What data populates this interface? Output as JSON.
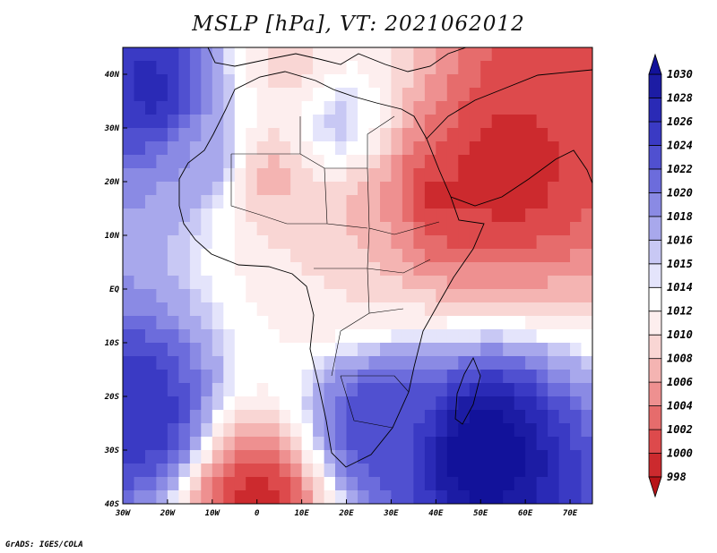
{
  "title": "MSLP [hPa], VT: 2021062012",
  "credit": "GrADS: IGES/COLA",
  "map": {
    "lon_range": [
      -30,
      75
    ],
    "lat_range": [
      -40,
      45
    ],
    "lon_ticks": [
      {
        "value": -30,
        "label": "30W"
      },
      {
        "value": -20,
        "label": "20W"
      },
      {
        "value": -10,
        "label": "10W"
      },
      {
        "value": 0,
        "label": "0"
      },
      {
        "value": 10,
        "label": "10E"
      },
      {
        "value": 20,
        "label": "20E"
      },
      {
        "value": 30,
        "label": "30E"
      },
      {
        "value": 40,
        "label": "40E"
      },
      {
        "value": 50,
        "label": "50E"
      },
      {
        "value": 60,
        "label": "60E"
      },
      {
        "value": 70,
        "label": "70E"
      }
    ],
    "lat_ticks": [
      {
        "value": 40,
        "label": "40N"
      },
      {
        "value": 30,
        "label": "30N"
      },
      {
        "value": 20,
        "label": "20N"
      },
      {
        "value": 10,
        "label": "10N"
      },
      {
        "value": 0,
        "label": "EQ"
      },
      {
        "value": -10,
        "label": "10S"
      },
      {
        "value": -20,
        "label": "20S"
      },
      {
        "value": -30,
        "label": "30S"
      },
      {
        "value": -40,
        "label": "40S"
      }
    ]
  },
  "colorbar": {
    "levels": [
      998,
      1000,
      1002,
      1004,
      1006,
      1008,
      1010,
      1012,
      1014,
      1015,
      1016,
      1018,
      1020,
      1022,
      1024,
      1026,
      1028,
      1030
    ],
    "colors": [
      "#b71418",
      "#cc2a2e",
      "#dd4a4c",
      "#e66c6c",
      "#ee9090",
      "#f4b4b2",
      "#f9d6d4",
      "#fdeeee",
      "#ffffff",
      "#e4e4fb",
      "#c8c8f4",
      "#a8a8ec",
      "#8a8ae4",
      "#6c6cdc",
      "#5050d0",
      "#3a3ac4",
      "#2a2ab6",
      "#1c1ca4",
      "#12129a"
    ]
  },
  "chart_data": {
    "type": "heatmap",
    "title": "MSLP [hPa], VT: 2021062012",
    "variable": "MSLP",
    "units": "hPa",
    "valid_time": "2021062012",
    "lon_range": [
      -30,
      75
    ],
    "lat_range": [
      -40,
      45
    ],
    "contour_levels": [
      998,
      1000,
      1002,
      1004,
      1006,
      1008,
      1010,
      1012,
      1014,
      1015,
      1016,
      1018,
      1020,
      1022,
      1024,
      1026,
      1028,
      1030
    ],
    "features": [
      {
        "name": "low",
        "lon": 55,
        "lat": 22,
        "value": 998
      },
      {
        "name": "low",
        "lon": 40,
        "lat": 17,
        "value": 999
      },
      {
        "name": "low",
        "lon": 3,
        "lat": 21,
        "value": 1007
      },
      {
        "name": "low",
        "lon": 28,
        "lat": 14,
        "value": 1006
      },
      {
        "name": "low",
        "lon": 18,
        "lat": 3,
        "value": 1010
      },
      {
        "name": "low",
        "lon": 65,
        "lat": 35,
        "value": 1000
      },
      {
        "name": "low",
        "lon": 8,
        "lat": 42,
        "value": 1009
      },
      {
        "name": "high",
        "lon": -23,
        "lat": 37,
        "value": 1027
      },
      {
        "name": "high",
        "lon": -12,
        "lat": 25,
        "value": 1018
      },
      {
        "name": "high",
        "lon": -26,
        "lat": -23,
        "value": 1026
      },
      {
        "name": "high",
        "lon": 50,
        "lat": -30,
        "value": 1032
      },
      {
        "name": "high",
        "lon": 27,
        "lat": -25,
        "value": 1024
      },
      {
        "name": "high",
        "lon": 18,
        "lat": 31,
        "value": 1016
      },
      {
        "name": "low",
        "lon": 0,
        "lat": -40,
        "value": 999
      }
    ]
  }
}
